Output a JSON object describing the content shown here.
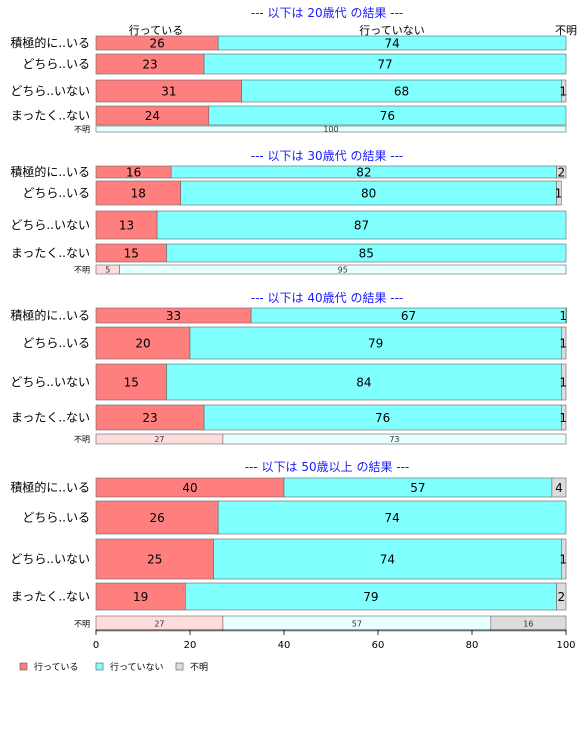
{
  "chart_data": {
    "type": "bar",
    "orientation": "horizontal-stacked",
    "column_headers": [
      "行っている",
      "行っていない",
      "不明"
    ],
    "categories": [
      "積極的に..いる",
      "どちら..いる",
      "どちら..いない",
      "まったく..ない",
      "不明"
    ],
    "series": [
      {
        "name": "行っている",
        "color": "#ff7f7f",
        "light_color": "#ffdcdc"
      },
      {
        "name": "行っていない",
        "color": "#80ffff",
        "light_color": "#e6ffff"
      },
      {
        "name": "不明",
        "color": "#dcdcdc",
        "light_color": "#dcdcdc"
      }
    ],
    "panels": [
      {
        "title": "--- 以下は 20歳代 の結果 ---",
        "show_column_headers": true,
        "rows": [
          {
            "label": "積極的に..いる",
            "values": [
              26,
              74,
              0
            ]
          },
          {
            "label": "どちら..いる",
            "values": [
              23,
              77,
              0
            ]
          },
          {
            "label": "どちら..いない",
            "values": [
              31,
              68,
              1
            ]
          },
          {
            "label": "まったく..ない",
            "values": [
              24,
              76,
              0
            ]
          },
          {
            "label": "不明",
            "values": [
              0,
              100,
              0
            ]
          }
        ]
      },
      {
        "title": "--- 以下は 30歳代 の結果 ---",
        "show_column_headers": false,
        "rows": [
          {
            "label": "積極的に..いる",
            "values": [
              16,
              82,
              2
            ]
          },
          {
            "label": "どちら..いる",
            "values": [
              18,
              80,
              1
            ]
          },
          {
            "label": "どちら..いない",
            "values": [
              13,
              87,
              0
            ]
          },
          {
            "label": "まったく..ない",
            "values": [
              15,
              85,
              0
            ]
          },
          {
            "label": "不明",
            "values": [
              5,
              95,
              0
            ]
          }
        ]
      },
      {
        "title": "--- 以下は 40歳代 の結果 ---",
        "show_column_headers": false,
        "rows": [
          {
            "label": "積極的に..いる",
            "values": [
              33,
              67,
              1
            ]
          },
          {
            "label": "どちら..いる",
            "values": [
              20,
              79,
              1
            ]
          },
          {
            "label": "どちら..いない",
            "values": [
              15,
              84,
              1
            ]
          },
          {
            "label": "まったく..ない",
            "values": [
              23,
              76,
              1
            ]
          },
          {
            "label": "不明",
            "values": [
              27,
              73,
              0
            ]
          }
        ]
      },
      {
        "title": "--- 以下は 50歳以上 の結果 ---",
        "show_column_headers": false,
        "rows": [
          {
            "label": "積極的に..いる",
            "values": [
              40,
              57,
              4
            ]
          },
          {
            "label": "どちら..いる",
            "values": [
              26,
              74,
              0
            ]
          },
          {
            "label": "どちら..いない",
            "values": [
              25,
              74,
              1
            ]
          },
          {
            "label": "まったく..ない",
            "values": [
              19,
              79,
              2
            ]
          },
          {
            "label": "不明",
            "values": [
              27,
              57,
              16
            ]
          }
        ]
      }
    ],
    "x_ticks": [
      0,
      20,
      40,
      60,
      80,
      100
    ],
    "xlim": [
      0,
      100
    ],
    "legend": [
      "行っている",
      "行っていない",
      "不明"
    ],
    "legend_position": "bottom-left",
    "grid": false
  }
}
